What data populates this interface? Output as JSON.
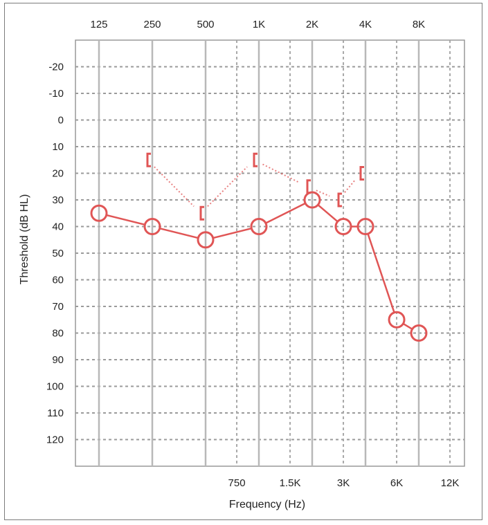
{
  "chart_data": {
    "type": "scatter",
    "title": "",
    "xlabel": "Frequency (Hz)",
    "ylabel": "Threshold (dB HL)",
    "ylim": [
      -30,
      130
    ],
    "y_reversed": true,
    "y_ticks": [
      -20,
      -10,
      0,
      10,
      20,
      30,
      40,
      50,
      60,
      70,
      80,
      90,
      100,
      110,
      120
    ],
    "x_scale": "log",
    "x_ticks_top": [
      {
        "hz": 125,
        "label": "125"
      },
      {
        "hz": 250,
        "label": "250"
      },
      {
        "hz": 500,
        "label": "500"
      },
      {
        "hz": 1000,
        "label": "1K"
      },
      {
        "hz": 2000,
        "label": "2K"
      },
      {
        "hz": 4000,
        "label": "4K"
      },
      {
        "hz": 8000,
        "label": "8K"
      }
    ],
    "x_ticks_bottom": [
      {
        "hz": 750,
        "label": "750"
      },
      {
        "hz": 1500,
        "label": "1.5K"
      },
      {
        "hz": 3000,
        "label": "3K"
      },
      {
        "hz": 6000,
        "label": "6K"
      },
      {
        "hz": 12000,
        "label": "12K"
      }
    ],
    "grid": true,
    "series": [
      {
        "marker": "circle",
        "line": "solid",
        "color": "#e05555",
        "points": [
          {
            "hz": 125,
            "db": 35
          },
          {
            "hz": 250,
            "db": 40
          },
          {
            "hz": 500,
            "db": 45
          },
          {
            "hz": 1000,
            "db": 40
          },
          {
            "hz": 2000,
            "db": 30
          },
          {
            "hz": 3000,
            "db": 40
          },
          {
            "hz": 4000,
            "db": 40
          },
          {
            "hz": 6000,
            "db": 75
          },
          {
            "hz": 8000,
            "db": 80
          }
        ]
      },
      {
        "marker": "bracket-left",
        "line": "dotted",
        "color": "#e05555",
        "points": [
          {
            "hz": 250,
            "db": 15
          },
          {
            "hz": 500,
            "db": 35
          },
          {
            "hz": 1000,
            "db": 15
          },
          {
            "hz": 2000,
            "db": 25
          },
          {
            "hz": 3000,
            "db": 30
          },
          {
            "hz": 4000,
            "db": 20
          }
        ]
      }
    ]
  }
}
